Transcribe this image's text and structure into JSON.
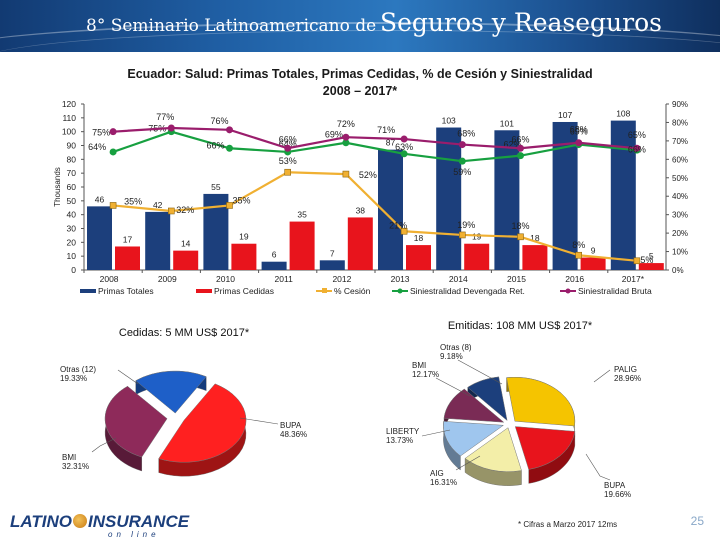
{
  "banner": {
    "small_text": "8° Seminario Latinoamericano de",
    "big_text": "Seguros y Reaseguros"
  },
  "chart_title": {
    "line1": "Ecuador: Salud: Primas Totales, Primas Cedidas, % de Cesión y Siniestralidad",
    "line2": "2008 – 2017*"
  },
  "chart_data": [
    {
      "type": "bar+line",
      "categories": [
        "2008",
        "2009",
        "2010",
        "2011",
        "2012",
        "2013",
        "2014",
        "2015",
        "2016",
        "2017*"
      ],
      "left_axis_label": "Thousands",
      "left_ylim": [
        0,
        120
      ],
      "left_ticks": [
        "0",
        "10",
        "20",
        "30",
        "40",
        "50",
        "60",
        "70",
        "80",
        "90",
        "100",
        "110",
        "120"
      ],
      "right_ylim": [
        0,
        90
      ],
      "right_ticks": [
        "0%",
        "10%",
        "20%",
        "30%",
        "40%",
        "50%",
        "60%",
        "70%",
        "80%",
        "90%"
      ],
      "series": [
        {
          "name": "Primas Totales",
          "kind": "bar",
          "axis": "left",
          "color": "#1c3f7c",
          "values": [
            46,
            42,
            55,
            6,
            7,
            87,
            103,
            101,
            107,
            108
          ],
          "labels": [
            "46",
            "42",
            "55",
            "6",
            "7",
            "87",
            "103",
            "101",
            "107",
            "108"
          ]
        },
        {
          "name": "Primas Cedidas",
          "kind": "bar",
          "axis": "left",
          "color": "#e8141c",
          "values": [
            17,
            14,
            19,
            35,
            38,
            18,
            19,
            18,
            9,
            5
          ],
          "labels": [
            "17",
            "14",
            "19",
            "35",
            "38",
            "18",
            "19",
            "18",
            "9",
            "5"
          ]
        },
        {
          "name": "% Cesión",
          "kind": "line",
          "axis": "right",
          "color": "#f0b032",
          "values": [
            35,
            32,
            35,
            53,
            52,
            21,
            19,
            18,
            8,
            5
          ],
          "labels": [
            "35%",
            "32%",
            "35%",
            "53%",
            "52%",
            "21%",
            "19%",
            "18%",
            "8%",
            "5%"
          ]
        },
        {
          "name": "Siniestralidad Devengada Ret.",
          "kind": "line",
          "axis": "right",
          "color": "#17a040",
          "values": [
            64,
            75,
            66,
            64,
            69,
            63,
            59,
            62,
            68,
            65
          ],
          "labels": [
            "64%",
            "75%",
            "66%",
            "64%",
            "69%",
            "63%",
            "59%",
            "62%",
            "68%",
            "65%"
          ]
        },
        {
          "name": "Siniestralidad Bruta",
          "kind": "line",
          "axis": "right",
          "color": "#9a1d6c",
          "values": [
            75,
            77,
            76,
            66,
            72,
            71,
            68,
            66,
            69,
            66
          ],
          "labels": [
            "75%",
            "77%",
            "76%",
            "66%",
            "72%",
            "71%",
            "68%",
            "66%",
            "69%",
            "66%"
          ]
        }
      ]
    },
    {
      "type": "pie",
      "title": "Cedidas: 5 MM US$ 2017*",
      "slices": [
        {
          "label": "BUPA",
          "pct_text": "48.36%",
          "value": 48.36,
          "color": "#ff2020"
        },
        {
          "label": "BMI",
          "pct_text": "32.31%",
          "value": 32.31,
          "color": "#8e2a5a"
        },
        {
          "label": "Otras (12)",
          "pct_text": "19.33%",
          "value": 19.33,
          "color": "#1e5fc8"
        }
      ]
    },
    {
      "type": "pie",
      "title": "Emitidas: 108 MM US$ 2017*",
      "slices": [
        {
          "label": "PALIG",
          "pct_text": "28.96%",
          "value": 28.96,
          "color": "#f5c400"
        },
        {
          "label": "BUPA",
          "pct_text": "19.66%",
          "value": 19.66,
          "color": "#e8141c"
        },
        {
          "label": "AIG",
          "pct_text": "16.31%",
          "value": 16.31,
          "color": "#f3eea8"
        },
        {
          "label": "LIBERTY",
          "pct_text": "13.73%",
          "value": 13.73,
          "color": "#9fc6ee"
        },
        {
          "label": "BMI",
          "pct_text": "12.17%",
          "value": 12.17,
          "color": "#7a2b55"
        },
        {
          "label": "Otras (8)",
          "pct_text": "9.18%",
          "value": 9.18,
          "color": "#1c3f7c"
        }
      ]
    }
  ],
  "footnote": "* Cifras a Marzo 2017 12ms",
  "logo": {
    "part1": "LATINO",
    "part2": "INSURANCE",
    "sub": "on line"
  },
  "page_number": "25"
}
